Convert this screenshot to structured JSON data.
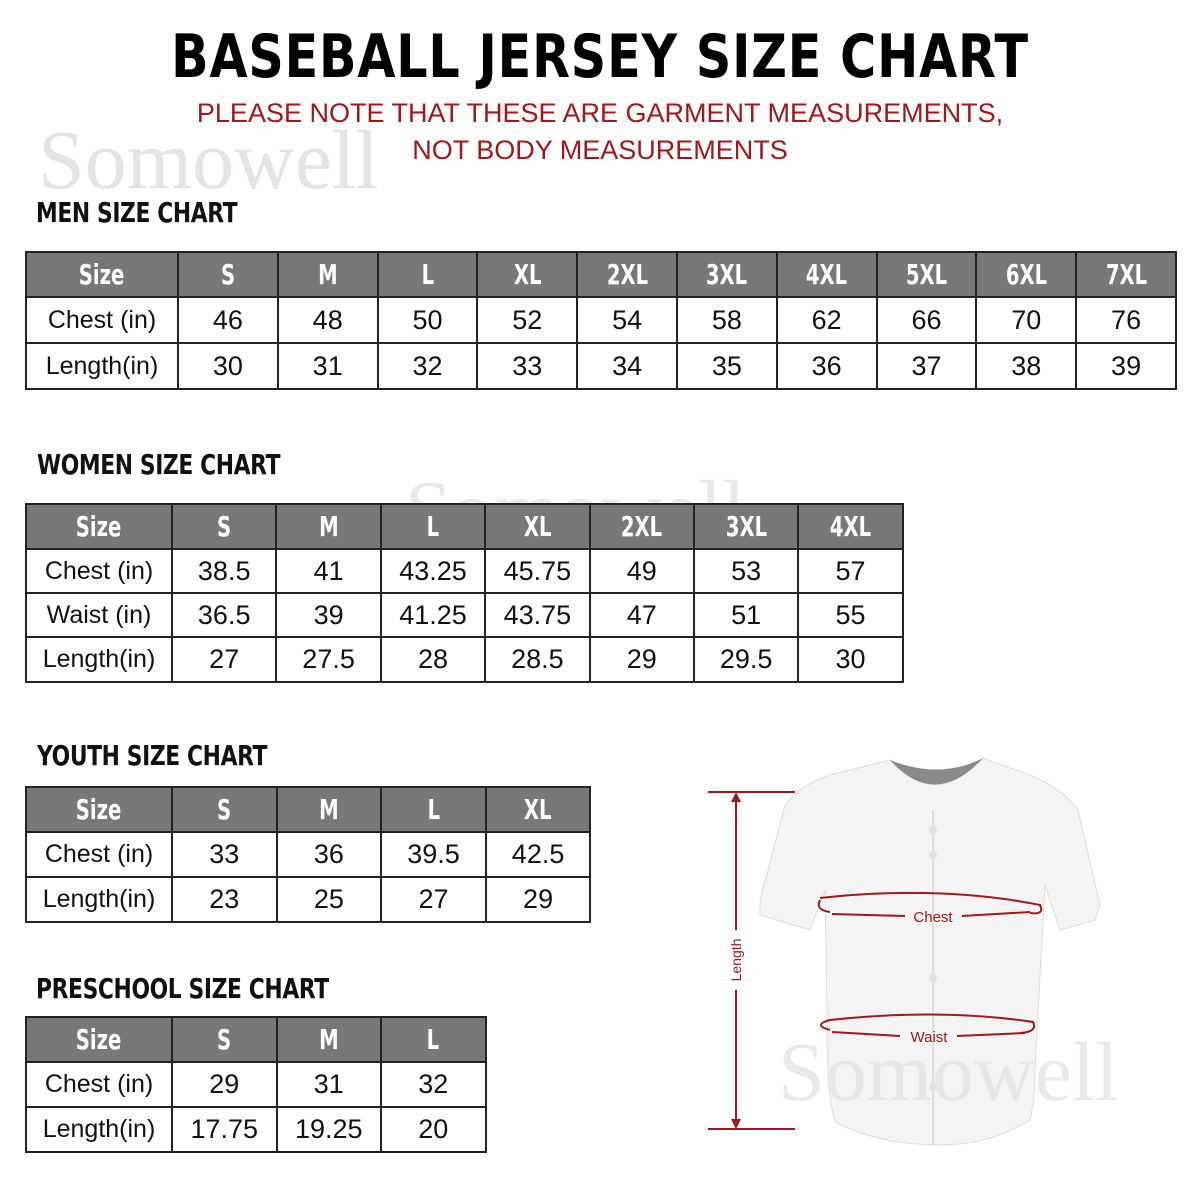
{
  "header": {
    "title": "BASEBALL JERSEY SIZE CHART",
    "note_line1": "PLEASE NOTE THAT THESE ARE GARMENT MEASUREMENTS,",
    "note_line2": "NOT BODY MEASUREMENTS"
  },
  "watermark": "Somowell",
  "colors": {
    "header_bg": "#787878",
    "note": "#a3161b",
    "measure_line": "#a3161b"
  },
  "tables": [
    {
      "title": "MEN SIZE CHART",
      "header": [
        "Size",
        "S",
        "M",
        "L",
        "XL",
        "2XL",
        "3XL",
        "4XL",
        "5XL",
        "6XL",
        "7XL"
      ],
      "rows": [
        [
          "Chest (in)",
          "46",
          "48",
          "50",
          "52",
          "54",
          "58",
          "62",
          "66",
          "70",
          "76"
        ],
        [
          "Length(in)",
          "30",
          "31",
          "32",
          "33",
          "34",
          "35",
          "36",
          "37",
          "38",
          "39"
        ]
      ]
    },
    {
      "title": "WOMEN SIZE CHART",
      "header": [
        "Size",
        "S",
        "M",
        "L",
        "XL",
        "2XL",
        "3XL",
        "4XL"
      ],
      "rows": [
        [
          "Chest (in)",
          "38.5",
          "41",
          "43.25",
          "45.75",
          "49",
          "53",
          "57"
        ],
        [
          "Waist (in)",
          "36.5",
          "39",
          "41.25",
          "43.75",
          "47",
          "51",
          "55"
        ],
        [
          "Length(in)",
          "27",
          "27.5",
          "28",
          "28.5",
          "29",
          "29.5",
          "30"
        ]
      ]
    },
    {
      "title": "YOUTH SIZE CHART",
      "header": [
        "Size",
        "S",
        "M",
        "L",
        "XL"
      ],
      "rows": [
        [
          "Chest (in)",
          "33",
          "36",
          "39.5",
          "42.5"
        ],
        [
          "Length(in)",
          "23",
          "25",
          "27",
          "29"
        ]
      ]
    },
    {
      "title": "PRESCHOOL SIZE CHART",
      "header": [
        "Size",
        "S",
        "M",
        "L"
      ],
      "rows": [
        [
          "Chest (in)",
          "29",
          "31",
          "32"
        ],
        [
          "Length(in)",
          "17.75",
          "19.25",
          "20"
        ]
      ]
    }
  ],
  "diagram": {
    "chest_label": "Chest",
    "waist_label": "Waist",
    "length_label": "Length"
  }
}
